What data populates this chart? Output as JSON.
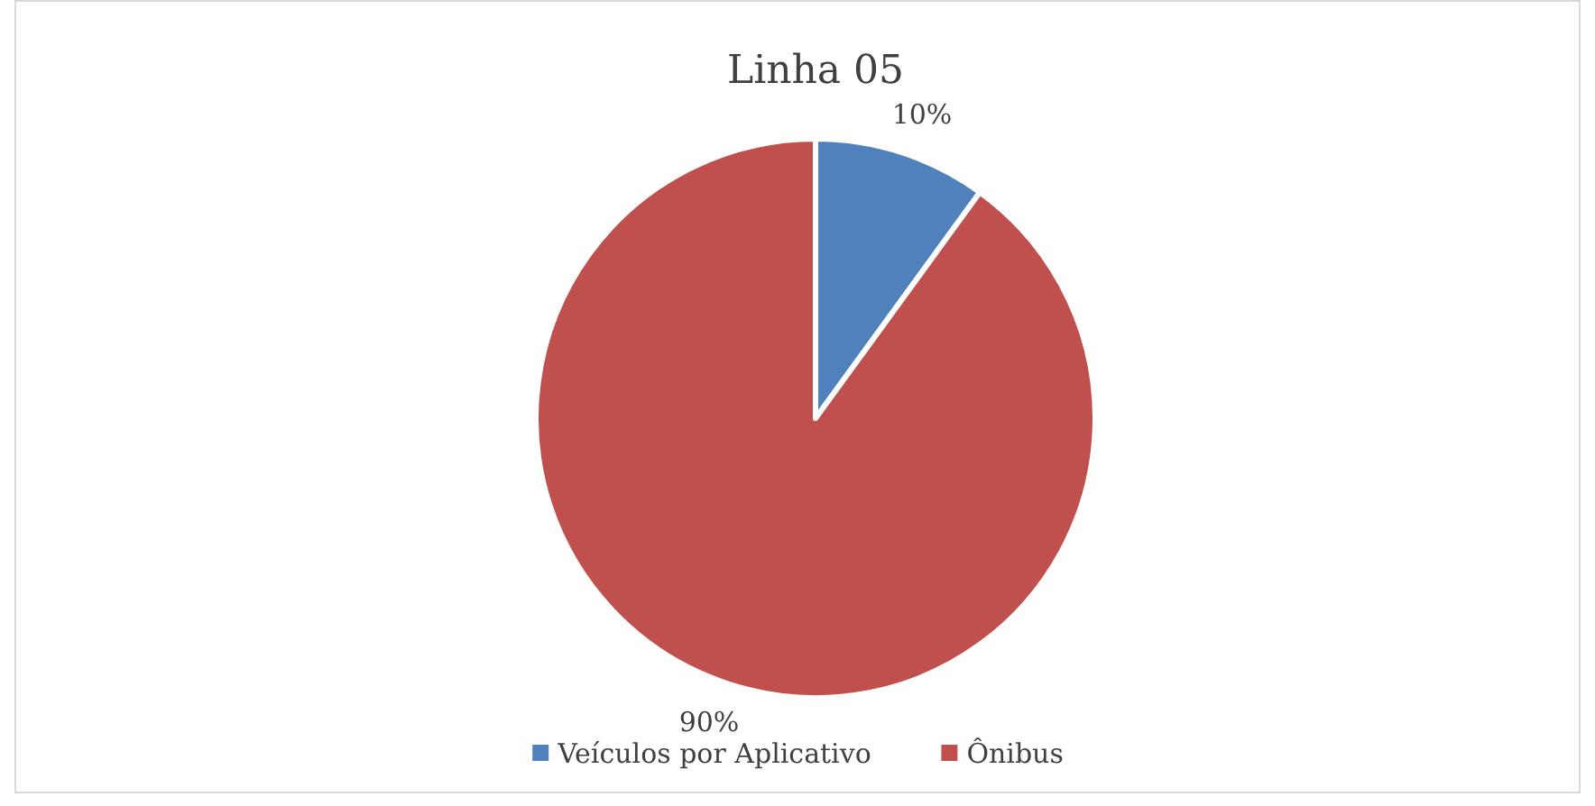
{
  "chart_data": {
    "type": "pie",
    "title": "Linha 05",
    "categories": [
      "Veículos por Aplicativo",
      "Ônibus"
    ],
    "values": [
      10,
      90
    ],
    "colors": [
      "#4f81bd",
      "#c0504d"
    ],
    "value_labels": [
      "10%",
      "90%"
    ],
    "legend": "bottom"
  }
}
